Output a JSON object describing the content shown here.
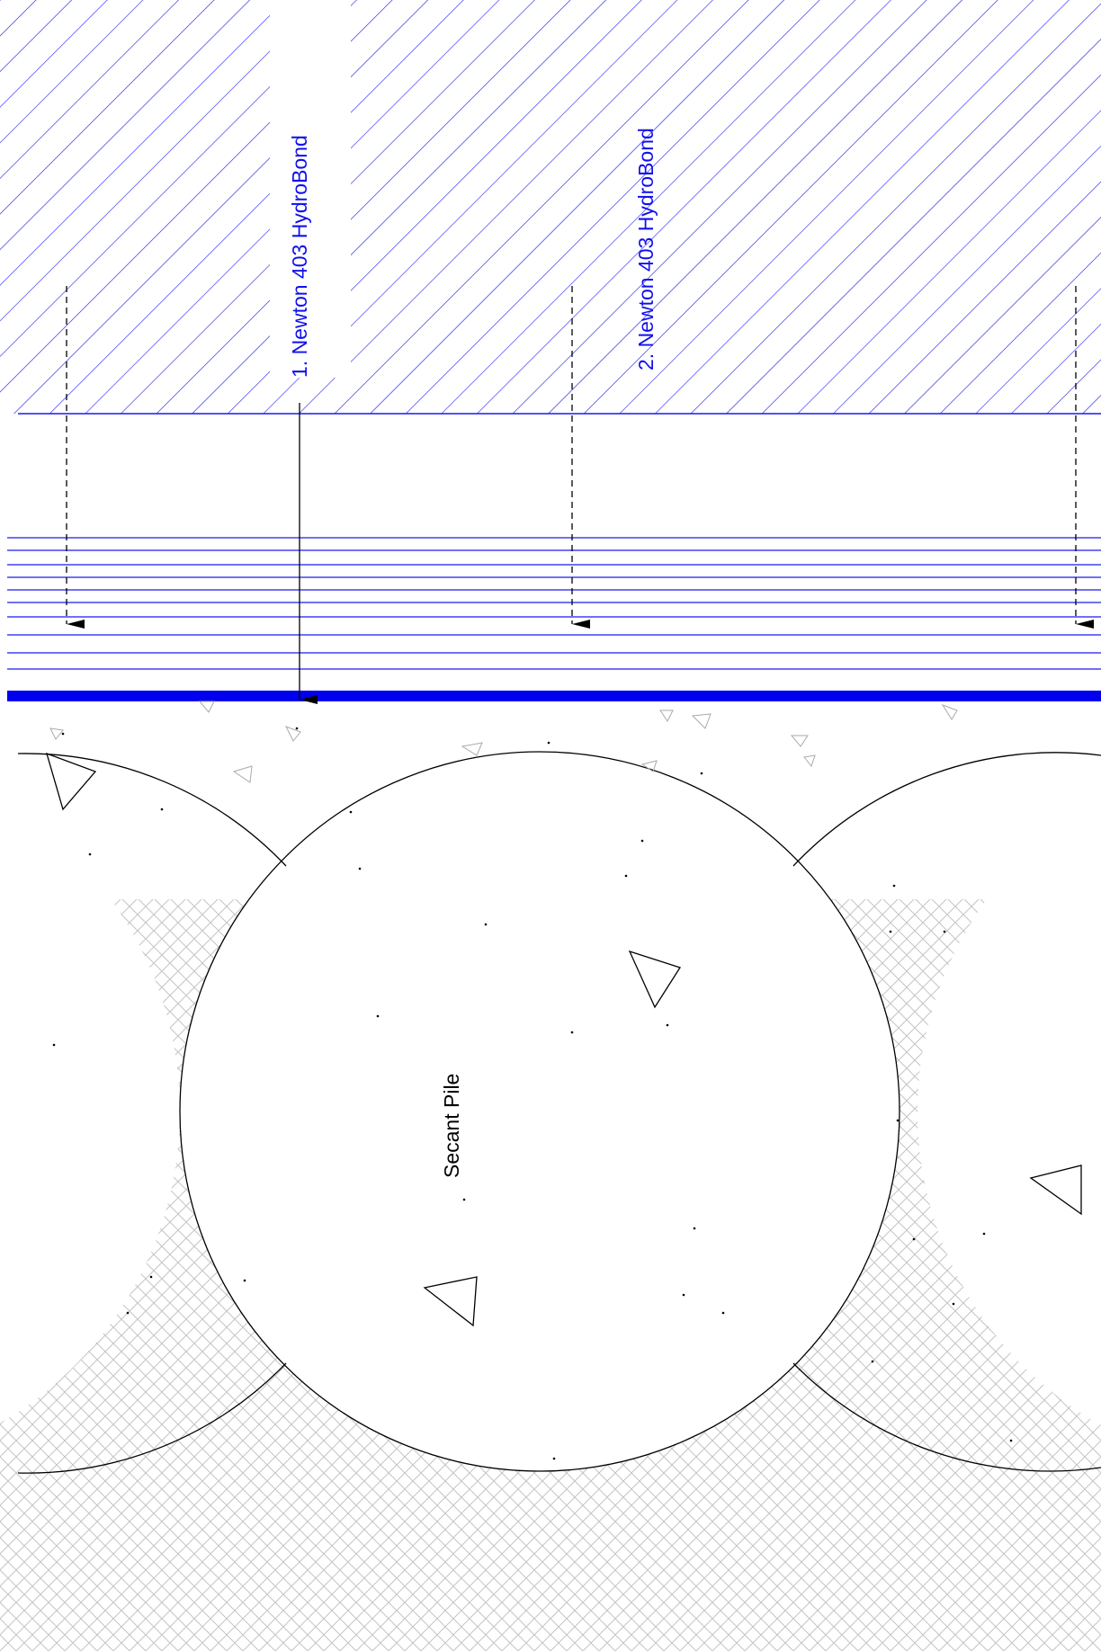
{
  "drawing": {
    "labels": {
      "product_1": "1. Newton 403 HydroBond",
      "product_2": "2. Newton 403 HydroBond",
      "pile": "Secant Pile"
    },
    "colors": {
      "hatch_blue": "#1a1aee",
      "membrane_blue": "#0000ee",
      "line_black": "#000000",
      "ground_hatch_grey": "#bdbdbd",
      "aggregate_grey": "#9a9a9a"
    },
    "elements": {
      "upper_zone": "blue diagonal hatch",
      "coating_layers": "horizontal blue lines",
      "membrane": "thick blue line",
      "piles": "three overlapping circles",
      "ground": "grey crosshatch"
    }
  }
}
